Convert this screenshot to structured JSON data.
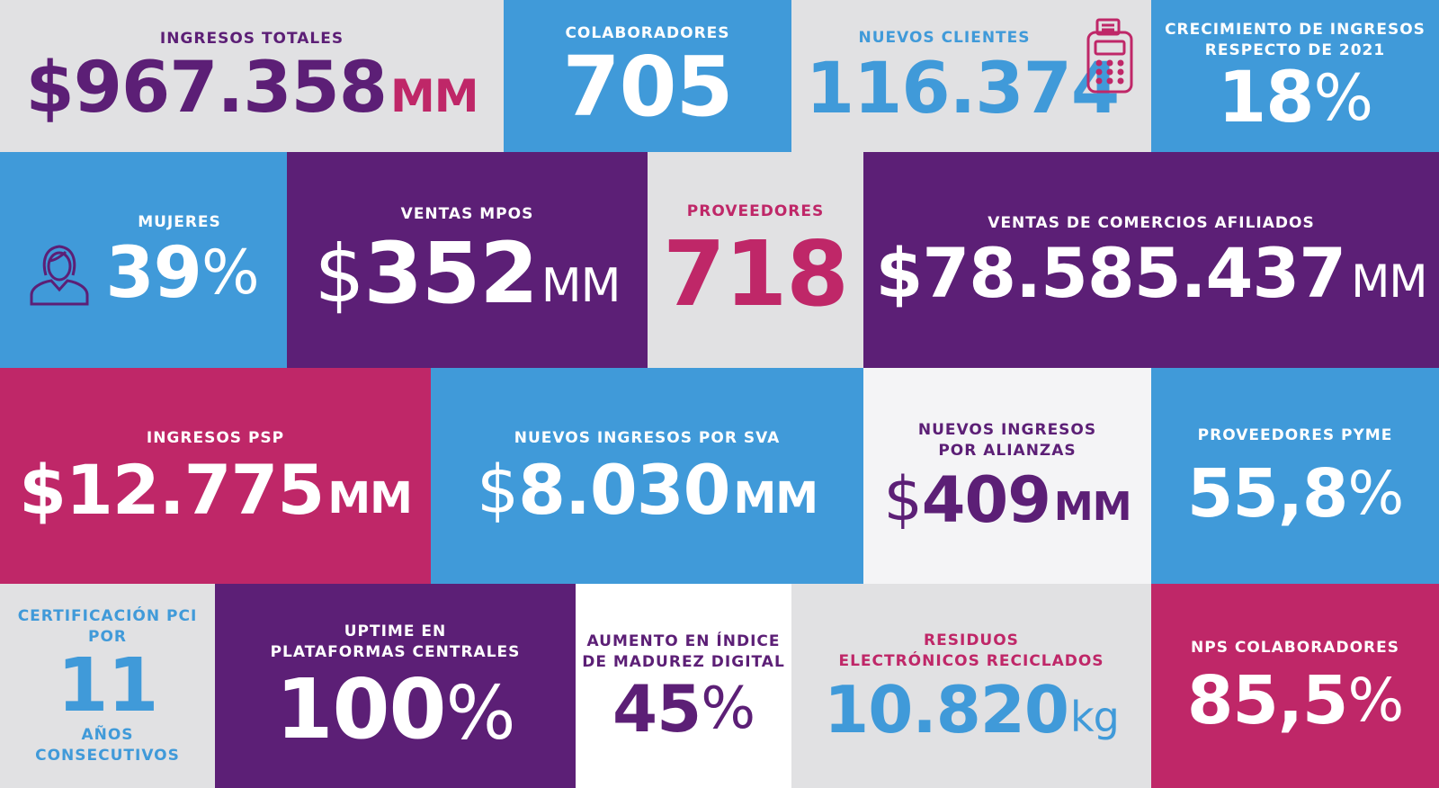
{
  "colors": {
    "purple": "#5c1f76",
    "blue": "#409ad9",
    "magenta": "#bf2768",
    "gray": "#e1e1e3",
    "white": "#ffffff"
  },
  "tiles": {
    "ingresos_totales": {
      "label": "INGRESOS TOTALES",
      "value": "$967.358",
      "unit": "MM"
    },
    "colaboradores": {
      "label": "COLABORADORES",
      "value": "705"
    },
    "nuevos_clientes": {
      "label": "NUEVOS CLIENTES",
      "value": "116.374",
      "icon": "pos-terminal-icon"
    },
    "crecimiento": {
      "label": "CRECIMIENTO DE INGRESOS\nRESPECTO DE 2021",
      "value": "18",
      "unit": "%"
    },
    "mujeres": {
      "label": "MUJERES",
      "value": "39",
      "unit": "%",
      "icon": "woman-icon"
    },
    "ventas_mpos": {
      "label": "VENTAS MPOS",
      "currency": "$",
      "value": "352",
      "unit": "MM"
    },
    "proveedores": {
      "label": "PROVEEDORES",
      "value": "718"
    },
    "ventas_comercios": {
      "label": "VENTAS DE COMERCIOS AFILIADOS",
      "value": "$78.585.437",
      "unit": "MM"
    },
    "ingresos_psp": {
      "label": "INGRESOS PSP",
      "value": "$12.775",
      "unit": "MM"
    },
    "nuevos_sva": {
      "label": "NUEVOS INGRESOS POR SVA",
      "currency": "$",
      "value": "8.030",
      "unit": "MM"
    },
    "nuevos_alianzas": {
      "label": "NUEVOS INGRESOS\nPOR ALIANZAS",
      "currency": "$",
      "value": "409",
      "unit": "MM"
    },
    "proveedores_pyme": {
      "label": "PROVEEDORES PYME",
      "value": "55,8",
      "unit": "%"
    },
    "certificacion": {
      "label": "CERTIFICACIÓN PCI\nPOR",
      "value": "11",
      "sublabel": "AÑOS\nCONSECUTIVOS"
    },
    "uptime": {
      "label": "UPTIME EN\nPLATAFORMAS CENTRALES",
      "value": "100",
      "unit": "%"
    },
    "madurez": {
      "label": "AUMENTO EN ÍNDICE\nDE MADUREZ DIGITAL",
      "value": "45",
      "unit": "%"
    },
    "residuos": {
      "label": "RESIDUOS\nELECTRÓNICOS RECICLADOS",
      "value": "10.820",
      "unit": "kg"
    },
    "nps": {
      "label": "NPS COLABORADORES",
      "value": "85,5",
      "unit": "%"
    }
  }
}
